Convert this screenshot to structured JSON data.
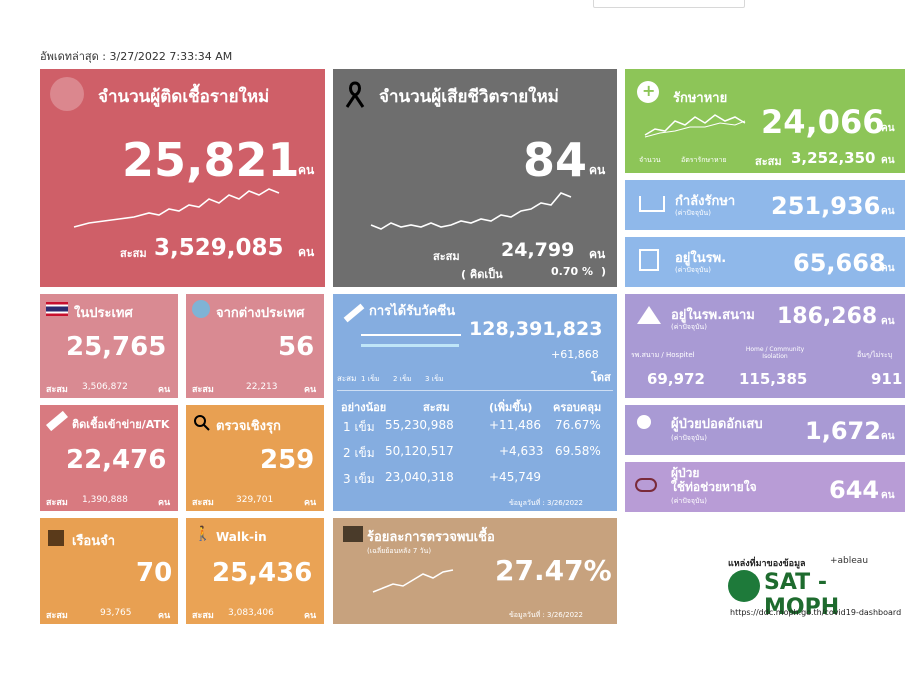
{
  "updated": "อัพเดทล่าสุด : 3/27/2022 7:33:34 AM",
  "new_cases": {
    "title": "จำนวนผู้ติดเชื้อรายใหม่",
    "value": "25,821",
    "unit": "คน",
    "cum_label": "สะสม",
    "cum_value": "3,529,085",
    "cum_unit": "คน"
  },
  "new_deaths": {
    "title": "จำนวนผู้เสียชีวิตรายใหม่",
    "value": "84",
    "unit": "คน",
    "cum_label": "สะสม",
    "cum_value": "24,799",
    "cum_unit": "คน",
    "rate_open": "( คิดเป็น",
    "rate_value": "0.70 %",
    "rate_close": ")"
  },
  "recovered": {
    "title": "รักษาหาย",
    "value": "24,066",
    "unit": "คน",
    "legend_count": "จำนวน",
    "legend_rate": "อัตรารักษาหาย",
    "cum_label": "สะสม",
    "cum_value": "3,252,350",
    "cum_unit": "คน"
  },
  "treating": {
    "title": "กำลังรักษา",
    "sub": "(ค่าปัจจุบัน)",
    "value": "251,936",
    "unit": "คน"
  },
  "in_hospital": {
    "title": "อยู่ในรพ.",
    "sub": "(ค่าปัจจุบัน)",
    "value": "65,668",
    "unit": "คน"
  },
  "domestic": {
    "title": "ในประเทศ",
    "value": "25,765",
    "cum_label": "สะสม",
    "cum_value": "3,506,872",
    "cum_unit": "คน"
  },
  "abroad": {
    "title": "จากต่างประเทศ",
    "value": "56",
    "cum_label": "สะสม",
    "cum_value": "22,213",
    "cum_unit": "คน"
  },
  "prison": {
    "title": "ติดเชื้อเข้าข่าย/ATK",
    "value": "22,476",
    "cum_label": "สะสม",
    "cum_value": "1,390,888",
    "cum_unit": "คน"
  },
  "active_search": {
    "title": "ตรวจเชิงรุก",
    "value": "259",
    "cum_label": "สะสม",
    "cum_value": "329,701",
    "cum_unit": "คน"
  },
  "jail": {
    "title": "เรือนจำ",
    "value": "70",
    "cum_label": "สะสม",
    "cum_value": "93,765",
    "cum_unit": "คน"
  },
  "walkin": {
    "title": "Walk-in",
    "value": "25,436",
    "cum_label": "สะสม",
    "cum_value": "3,083,406",
    "cum_unit": "คน"
  },
  "vaccine": {
    "title": "การได้รับวัคซีน",
    "total": "128,391,823",
    "delta": "+61,868",
    "unit": "โดส",
    "legend_prefix": "สะสม",
    "legend": [
      "1 เข็ม",
      "2 เข็ม",
      "3 เข็ม"
    ],
    "headers": [
      "อย่างน้อย",
      "สะสม",
      "(เพิ่มขึ้น)",
      "ครอบคลุม"
    ],
    "rows": [
      {
        "dose": "1 เข็ม",
        "cum": "55,230,988",
        "inc": "+11,486",
        "cov": "76.67%"
      },
      {
        "dose": "2 เข็ม",
        "cum": "50,120,517",
        "inc": "+4,633",
        "cov": "69.58%"
      },
      {
        "dose": "3 เข็ม",
        "cum": "23,040,318",
        "inc": "+45,749",
        "cov": ""
      }
    ],
    "asof": "ข้อมูลวันที่ : 3/26/2022"
  },
  "positivity": {
    "title": "ร้อยละการตรวจพบเชื้อ",
    "sub": "(เฉลี่ยย้อนหลัง 7 วัน)",
    "value": "27.47%",
    "asof": "ข้อมูลวันที่ : 3/26/2022"
  },
  "field_hospital": {
    "title": "อยู่ในรพ.สนาม",
    "sub": "(ค่าปัจจุบัน)",
    "value": "186,268",
    "unit": "คน",
    "cols": [
      {
        "label": "รพ.สนาม / Hospitel",
        "value": "69,972"
      },
      {
        "label": "Home / Community Isolation",
        "value": "115,385"
      },
      {
        "label": "อื่นๆ/ไม่ระบุ",
        "value": "911"
      }
    ]
  },
  "pneumonia": {
    "title": "ผู้ป่วยปอดอักเสบ",
    "sub": "(ค่าปัจจุบัน)",
    "value": "1,672",
    "unit": "คน"
  },
  "ventilator": {
    "title1": "ผู้ป่วย",
    "title2": "ใช้ท่อช่วยหายใจ",
    "sub": "(ค่าปัจจุบัน)",
    "value": "644",
    "unit": "คน"
  },
  "source": {
    "label": "แหล่งที่มาของข้อมูล",
    "tableau": "+ableau",
    "brand": "SAT - MOPH",
    "url": "https://ddc.moph.go.th/covid19-dashboard"
  },
  "colors": {
    "cases": "#cf5f68",
    "deaths": "#6e6e6e",
    "green": "#8dc558",
    "blue": "#8fb8ea",
    "pink": "#d98a92",
    "orange": "#e8a052",
    "vaccine": "#85ade0",
    "tan": "#c7a27e",
    "purple": "#a99ad4"
  }
}
